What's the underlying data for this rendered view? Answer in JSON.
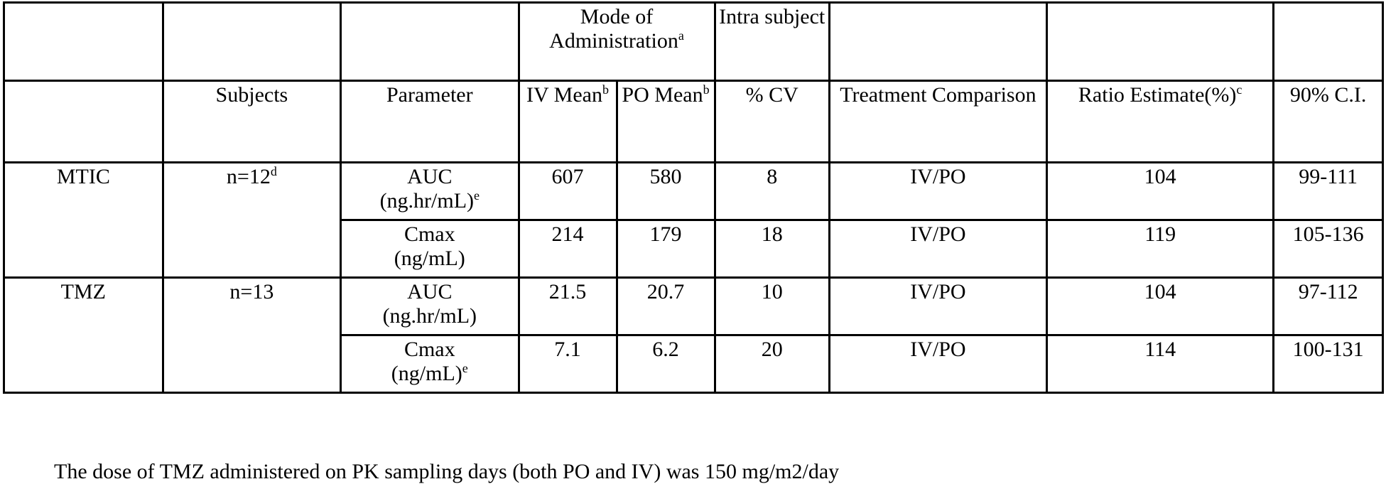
{
  "table": {
    "group_header": {
      "mode_label": "Mode of Administration",
      "mode_sup": "a",
      "intra_label": "Intra subject"
    },
    "headers": {
      "subjects": "Subjects",
      "parameter": "Parameter",
      "iv_mean": "IV Mean",
      "iv_sup": "b",
      "po_mean": "PO Mean",
      "po_sup": "b",
      "cv": "% CV",
      "treatment": "Treatment Comparison",
      "ratio": "Ratio Estimate(%)",
      "ratio_sup": "c",
      "ci": "90% C.I."
    },
    "groups": [
      {
        "compound": "MTIC",
        "subjects": "n=12",
        "subjects_sup": "d",
        "rows": [
          {
            "param_line1": "AUC",
            "param_line2": "(ng.hr/mL)",
            "param_sup": "e",
            "iv": "607",
            "po": "580",
            "cv": "8",
            "comparison": "IV/PO",
            "ratio": "104",
            "ci": "99-111"
          },
          {
            "param_line1": "Cmax",
            "param_line2": "(ng/mL)",
            "param_sup": "",
            "iv": "214",
            "po": "179",
            "cv": "18",
            "comparison": "IV/PO",
            "ratio": "119",
            "ci": "105-136"
          }
        ]
      },
      {
        "compound": "TMZ",
        "subjects": "n=13",
        "subjects_sup": "",
        "rows": [
          {
            "param_line1": "AUC",
            "param_line2": "(ng.hr/mL)",
            "param_sup": "",
            "iv": "21.5",
            "po": "20.7",
            "cv": "10",
            "comparison": "IV/PO",
            "ratio": "104",
            "ci": "97-112"
          },
          {
            "param_line1": "Cmax",
            "param_line2": "(ng/mL)",
            "param_sup": "e",
            "iv": "7.1",
            "po": "6.2",
            "cv": "20",
            "comparison": "IV/PO",
            "ratio": "114",
            "ci": "100-131"
          }
        ]
      }
    ]
  },
  "footnote": "The dose of TMZ administered on PK sampling days (both PO and IV) was 150 mg/m2/day"
}
